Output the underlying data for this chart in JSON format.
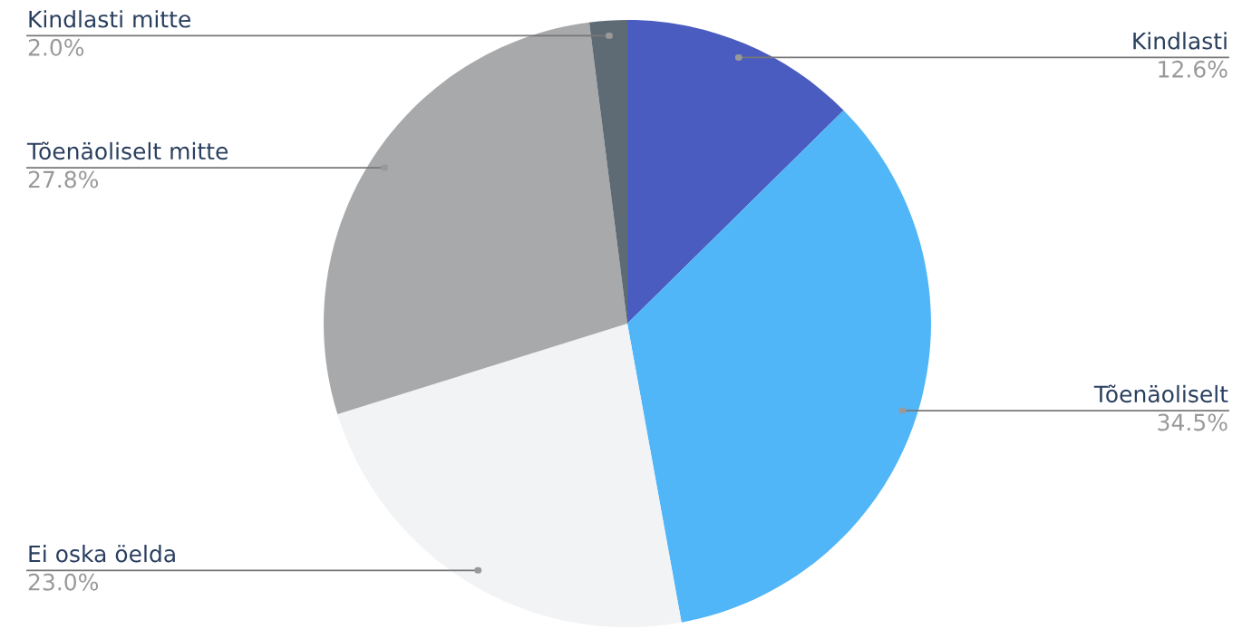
{
  "chart_data": {
    "type": "pie",
    "categories": [
      "Kindlasti",
      "Tõenäoliselt",
      "Ei oska öelda",
      "Tõenäoliselt mitte",
      "Kindlasti mitte"
    ],
    "values": [
      12.6,
      34.5,
      23.0,
      27.8,
      2.0
    ],
    "value_labels": [
      "12.6%",
      "34.5%",
      "23.0%",
      "27.8%",
      "2.0%"
    ],
    "colors": [
      "#4a5cbf",
      "#50b6f8",
      "#f2f3f5",
      "#a8a9ab",
      "#5f6b74"
    ],
    "legend": false
  }
}
